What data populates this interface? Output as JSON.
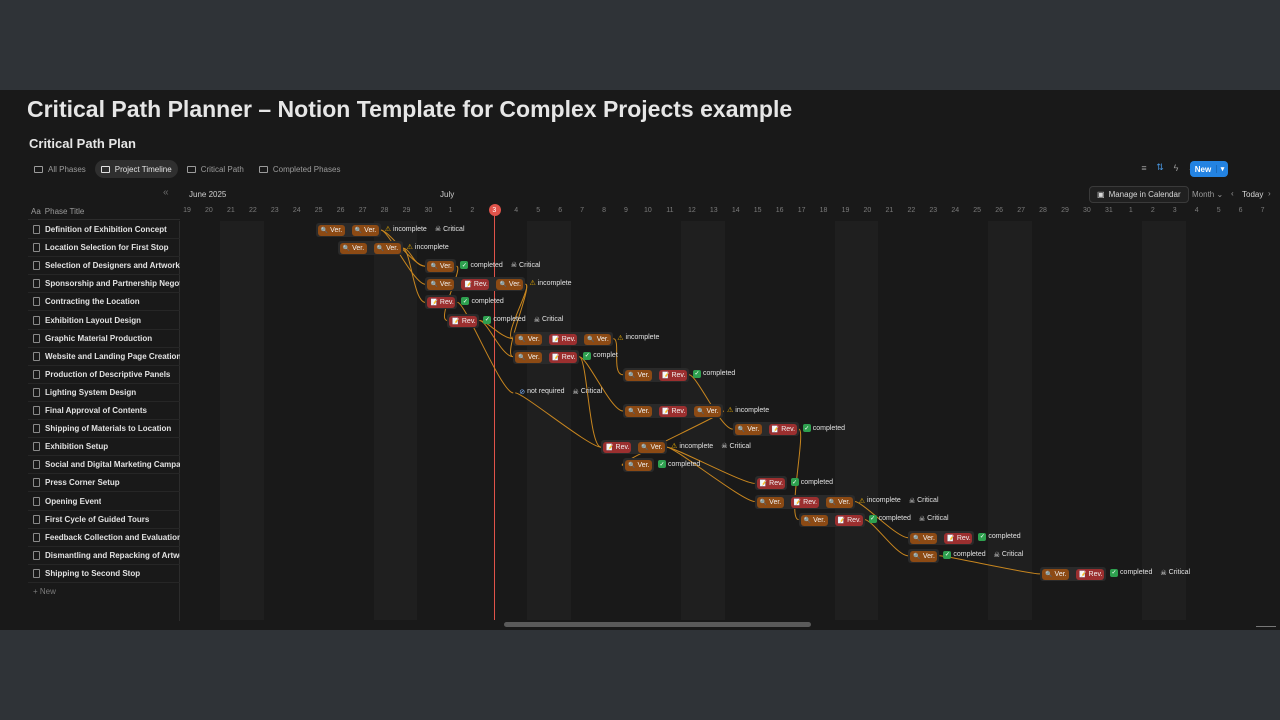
{
  "page_title": "Critical Path Planner – Notion Template for Complex Projects example",
  "db_title": "Critical Path Plan",
  "tabs": [
    {
      "label": "All Phases",
      "active": false
    },
    {
      "label": "Project Timeline",
      "active": true
    },
    {
      "label": "Critical Path",
      "active": false
    },
    {
      "label": "Completed Phases",
      "active": false
    }
  ],
  "toolbar": {
    "new_label": "New",
    "manage_label": "Manage in Calendar",
    "scale_label": "Month",
    "today_label": "Today"
  },
  "timeline": {
    "month_a": "June 2025",
    "month_b": "July",
    "column_header": "Phase Title",
    "days": [
      "19",
      "20",
      "21",
      "22",
      "23",
      "24",
      "25",
      "26",
      "27",
      "28",
      "29",
      "30",
      "1",
      "2",
      "3",
      "4",
      "5",
      "6",
      "7",
      "8",
      "9",
      "10",
      "11",
      "12",
      "13",
      "14",
      "15",
      "16",
      "17",
      "18",
      "19",
      "20",
      "21",
      "22",
      "23",
      "24",
      "25",
      "26",
      "27",
      "28",
      "29",
      "30",
      "31",
      "1",
      "2",
      "3",
      "4",
      "5",
      "6",
      "7"
    ],
    "today_day": "3",
    "new_row_label": "+ New",
    "accent": "#e0534a"
  },
  "rows": [
    {
      "title": "Definition of Exhibition Concept",
      "col": 6,
      "pills": [
        "Ver.",
        "Ver."
      ],
      "status": "incomplete",
      "critical": "Critical"
    },
    {
      "title": "Location Selection for First Stop",
      "col": 7,
      "pills": [
        "Ver.",
        "Ver."
      ],
      "status": "incomplete",
      "critical": ""
    },
    {
      "title": "Selection of Designers and Artworks",
      "col": 11,
      "pills": [
        "Ver."
      ],
      "status": "completed",
      "critical": "Critical"
    },
    {
      "title": "Sponsorship and Partnership Negotiati",
      "col": 11,
      "pills": [
        "Ver.",
        "Rev.",
        "Ver."
      ],
      "status": "incomplete",
      "critical": ""
    },
    {
      "title": "Contracting the Location",
      "col": 11,
      "pills": [
        "Rev."
      ],
      "status": "completed",
      "critical": ""
    },
    {
      "title": "Exhibition Layout Design",
      "col": 12,
      "pills": [
        "Rev."
      ],
      "status": "completed",
      "critical": "Critical"
    },
    {
      "title": "Graphic Material Production",
      "col": 15,
      "pills": [
        "Ver.",
        "Rev.",
        "Ver."
      ],
      "status": "incomplete",
      "critical": ""
    },
    {
      "title": "Website and Landing Page Creation",
      "col": 15,
      "pills": [
        "Ver.",
        "Rev."
      ],
      "status": "complet",
      "critical": ""
    },
    {
      "title": "Production of Descriptive Panels",
      "col": 20,
      "pills": [
        "Ver.",
        "Rev."
      ],
      "status": "completed",
      "critical": ""
    },
    {
      "title": "Lighting System Design",
      "col": 15,
      "pills": [],
      "status": "not required",
      "critical": "Critical"
    },
    {
      "title": "Final Approval of Contents",
      "col": 20,
      "pills": [
        "Ver.",
        "Rev.",
        "Ver."
      ],
      "status": "incomplete",
      "critical": ""
    },
    {
      "title": "Shipping of Materials to Location",
      "col": 25,
      "pills": [
        "Ver.",
        "Rev."
      ],
      "status": "completed",
      "critical": ""
    },
    {
      "title": "Exhibition Setup",
      "col": 19,
      "pills": [
        "Rev.",
        "Ver."
      ],
      "status": "incomplete",
      "critical": "Critical"
    },
    {
      "title": "Social and Digital Marketing Campaign",
      "col": 20,
      "pills": [
        "Ver."
      ],
      "status": "completed",
      "critical": ""
    },
    {
      "title": "Press Corner Setup",
      "col": 26,
      "pills": [
        "Rev."
      ],
      "status": "completed",
      "critical": ""
    },
    {
      "title": "Opening Event",
      "col": 26,
      "pills": [
        "Ver.",
        "Rev.",
        "Ver."
      ],
      "status": "incomplete",
      "critical": "Critical"
    },
    {
      "title": "First Cycle of Guided Tours",
      "col": 28,
      "pills": [
        "Ver.",
        "Rev."
      ],
      "status": "completed",
      "critical": "Critical"
    },
    {
      "title": "Feedback Collection and Evaluation",
      "col": 33,
      "pills": [
        "Ver.",
        "Rev."
      ],
      "status": "completed",
      "critical": ""
    },
    {
      "title": "Dismantling and Repacking of Artworks",
      "col": 33,
      "pills": [
        "Ver."
      ],
      "status": "completed",
      "critical": "Critical"
    },
    {
      "title": "Shipping to Second Stop",
      "col": 39,
      "pills": [
        "Ver.",
        "Rev."
      ],
      "status": "completed",
      "critical": "Critical"
    }
  ],
  "dependencies": [
    [
      0,
      2
    ],
    [
      0,
      3
    ],
    [
      1,
      2
    ],
    [
      1,
      4
    ],
    [
      2,
      5
    ],
    [
      3,
      6
    ],
    [
      3,
      7
    ],
    [
      4,
      9
    ],
    [
      5,
      6
    ],
    [
      5,
      7
    ],
    [
      6,
      8
    ],
    [
      7,
      10
    ],
    [
      7,
      12
    ],
    [
      9,
      12
    ],
    [
      8,
      11
    ],
    [
      10,
      13
    ],
    [
      12,
      14
    ],
    [
      12,
      15
    ],
    [
      11,
      16
    ],
    [
      15,
      17
    ],
    [
      16,
      18
    ],
    [
      18,
      19
    ]
  ],
  "colors": {
    "ver": "#8c4a14",
    "rev": "#9b2f2f",
    "arrow": "#c8861f",
    "background": "#191919"
  }
}
